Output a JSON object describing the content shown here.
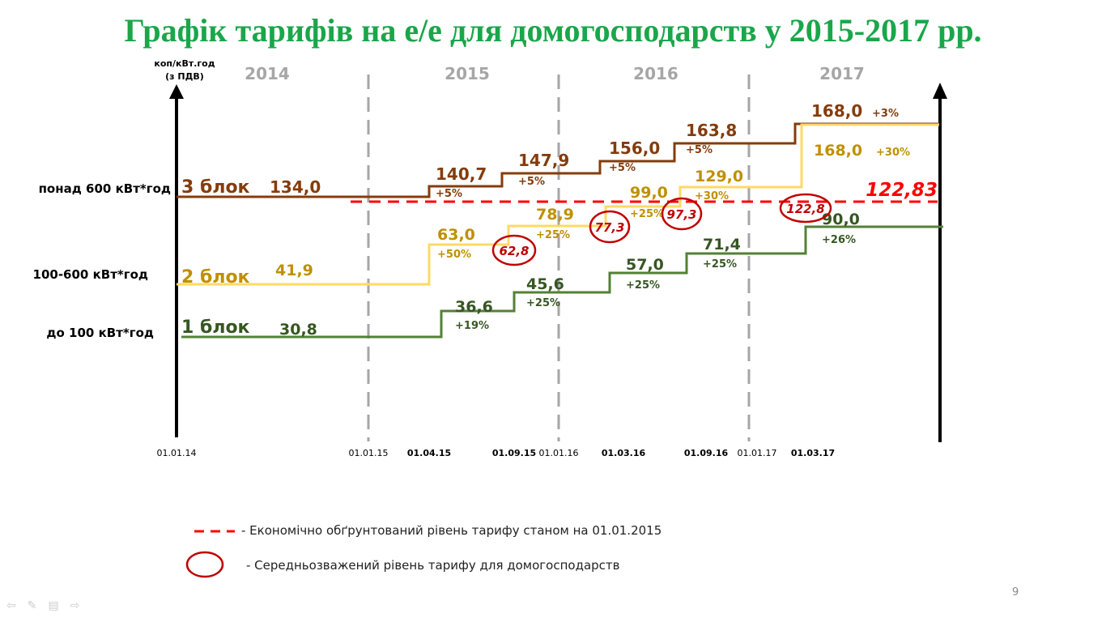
{
  "chart_data": {
    "type": "line",
    "title": "Графік тарифів на е/е для домогосподарств у 2015-2017 рр.",
    "ylabel": "коп/кВт.год (з ПДВ)",
    "years": [
      "2014",
      "2015",
      "2016",
      "2017"
    ],
    "x_ticks": [
      "01.01.14",
      "01.01.15",
      "01.04.15",
      "01.09.15",
      "01.01.16",
      "01.03.16",
      "01.09.16",
      "01.01.17",
      "01.03.17"
    ],
    "row_labels": [
      "понад 600 кВт*год",
      "100-600 кВт*год",
      "до 100 кВт*год"
    ],
    "series": [
      {
        "name": "3 блок",
        "color": "#843c0c",
        "label_color": "#843c0c",
        "dates": [
          "01.01.14",
          "01.04.15",
          "01.09.15",
          "01.03.16",
          "01.09.16",
          "01.03.17"
        ],
        "values": [
          134.0,
          140.7,
          147.9,
          156.0,
          163.8,
          168.0
        ],
        "value_labels": [
          "134,0",
          "140,7",
          "147,9",
          "156,0",
          "163,8",
          "168,0"
        ],
        "changes": [
          "",
          "+5%",
          "+5%",
          "+5%",
          "+5%",
          "+3%"
        ]
      },
      {
        "name": "2 блок",
        "color": "#ffd966",
        "label_color": "#bf9000",
        "dates": [
          "01.01.14",
          "01.04.15",
          "01.09.15",
          "01.03.16",
          "01.09.16",
          "01.03.17"
        ],
        "values": [
          41.9,
          63.0,
          78.9,
          99.0,
          129.0,
          168.0
        ],
        "value_labels": [
          "41,9",
          "63,0",
          "78,9",
          "99,0",
          "129,0",
          "168,0"
        ],
        "changes": [
          "",
          "+50%",
          "+25%",
          "+25%",
          "+30%",
          "+30%"
        ]
      },
      {
        "name": "1 блок",
        "color": "#538135",
        "label_color": "#375623",
        "dates": [
          "01.01.14",
          "01.04.15",
          "01.09.15",
          "01.03.16",
          "01.09.16",
          "01.03.17"
        ],
        "values": [
          30.8,
          36.6,
          45.6,
          57.0,
          71.4,
          90.0
        ],
        "value_labels": [
          "30,8",
          "36,6",
          "45,6",
          "57,0",
          "71,4",
          "90,0"
        ],
        "changes": [
          "",
          "+19%",
          "+25%",
          "+25%",
          "+25%",
          "+26%"
        ]
      }
    ],
    "economic_level": {
      "value": 122.83,
      "label": "122,83",
      "color": "#ff0000"
    },
    "weighted_average": {
      "values": [
        62.8,
        77.3,
        97.3,
        122.8
      ],
      "labels": [
        "62,8",
        "77,3",
        "97,3",
        "122,8"
      ],
      "color": "#c00000"
    },
    "legend": [
      {
        "symbol": "dashed-line",
        "text": "- Економічно обґрунтований рівень тарифу станом на 01.01.2015"
      },
      {
        "symbol": "ellipse",
        "text": "- Середньозважений рівень тарифу для домогосподарств"
      }
    ]
  },
  "page_number": "9"
}
